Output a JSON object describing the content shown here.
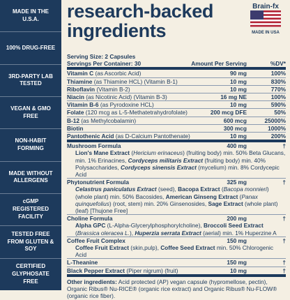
{
  "sidebar": [
    "MADE IN THE U.S.A.",
    "100% DRUG-FREE",
    "3RD-PARTY LAB TESTED",
    "VEGAN & GMO FREE",
    "NON-HABIT FORMING",
    "MADE WITHOUT ALLERGENS",
    "cGMP REGISTERED FACILITY",
    "TESTED FREE FROM GLUTEN & SOY",
    "CERTIFIED GLYPHOSATE FREE"
  ],
  "header": {
    "title": [
      "research-backed",
      "ingredients"
    ],
    "brand": "Brain-fx",
    "badge": "MADE IN USA"
  },
  "table": {
    "serving_size": "Serving Size: 2 Capsules",
    "servings_per_container": "Servings Per Container: 30",
    "amount_header": "Amount Per Serving",
    "dv_header": "%DV*",
    "rows": [
      {
        "name": "Vitamin C",
        "detail": "(as Ascorbic Acid)",
        "amount": "90 mg",
        "dv": "100%"
      },
      {
        "name": "Thiamine",
        "detail": "(as Thiamine HCL) (Vitamin B-1)",
        "amount": "10 mg",
        "dv": "830%"
      },
      {
        "name": "Riboflavin",
        "detail": "(Vitamin B-2)",
        "amount": "10 mg",
        "dv": "770%"
      },
      {
        "name": "Niacin",
        "detail": "(as Nicotinic Acid) (Vitamin B-3)",
        "amount": "16 mg NE",
        "dv": "100%"
      },
      {
        "name": "Vitamin B-6",
        "detail": "(as Pyrodoxine HCL)",
        "amount": "10 mg",
        "dv": "590%"
      },
      {
        "name": "Folate",
        "detail": "(120 mcg as L-5-Methatetrahydrofolate)",
        "amount": "200 mcg DFE",
        "dv": "50%"
      },
      {
        "name": "B-12",
        "detail": "(as Methylcobalamin)",
        "amount": "600 mcg",
        "dv": "25000%"
      },
      {
        "name": "Biotin",
        "detail": "",
        "amount": "300 mcg",
        "dv": "1000%"
      },
      {
        "name": "Pantothenic Acid",
        "detail": "(as D-Calcium Pantothenate)",
        "amount": "10 mg",
        "dv": "200%",
        "thick": true
      },
      {
        "name": "Mushroom Formula",
        "amount": "400 mg",
        "dv": "†",
        "description": [
          {
            "text": "Lion's Mane Extract",
            "bold": true
          },
          {
            "text": " ("
          },
          {
            "text": "Hericium erinaceus",
            "italic": true
          },
          {
            "text": ") (fruiting body) min. 50% Beta Glucans, min. 1% Erinacines, "
          },
          {
            "text": "Cordyceps militaris Extract",
            "bold": true,
            "italic": true
          },
          {
            "text": " (fruiting body) min. 40% Polysaccharides, "
          },
          {
            "text": "Cordyceps sinensis Extract",
            "bold": true,
            "italic": true
          },
          {
            "text": " (mycelium) min. 8% Cordycepic Acid"
          }
        ]
      },
      {
        "name": "Phytonutrient Formula",
        "amount": "325 mg",
        "dv": "†",
        "description": [
          {
            "text": "Celastrus paniculatus Extract",
            "bold": true,
            "italic": true
          },
          {
            "text": " (seed), "
          },
          {
            "text": "Bacopa Extract",
            "bold": true
          },
          {
            "text": " ("
          },
          {
            "text": "Bacopa monnieri",
            "italic": true
          },
          {
            "text": ") (whole plant) min. 50% Bacosides, "
          },
          {
            "text": "American Ginseng Extract",
            "bold": true
          },
          {
            "text": " ("
          },
          {
            "text": "Panax quinquefolius",
            "italic": true
          },
          {
            "text": ") (root, stem) min. 20% Ginsenosides, "
          },
          {
            "text": "Sage Extract",
            "bold": true
          },
          {
            "text": " (whole plant) (leaf) [Thujone Free]"
          }
        ]
      },
      {
        "name": "Choline Formula",
        "amount": "200 mg",
        "dv": "†",
        "description": [
          {
            "text": "Alpha GPC",
            "bold": true
          },
          {
            "text": " (L-Alpha-Glycerylphosphorylcholine), "
          },
          {
            "text": "Broccoli Seed Extract",
            "bold": true
          },
          {
            "text": " ("
          },
          {
            "text": "Brassica oleracea L.",
            "italic": true
          },
          {
            "text": "), "
          },
          {
            "text": "Huperzia serrata Extract",
            "bold": true,
            "italic": true
          },
          {
            "text": " (aerial) min. 1% Huperzine A"
          }
        ]
      },
      {
        "name": "Coffee Fruit Complex",
        "amount": "150 mg",
        "dv": "†",
        "description": [
          {
            "text": "Coffee Fruit Extract",
            "bold": true
          },
          {
            "text": " (skin,pulp), "
          },
          {
            "text": "Coffee Seed Extract",
            "bold": true
          },
          {
            "text": " min. 50% Chlorogenic Acid"
          }
        ]
      },
      {
        "name": "L-Theanine",
        "detail": "",
        "amount": "150 mg",
        "dv": "†"
      },
      {
        "name": "Black Pepper Extract",
        "detail": "(Piper nigrum) (fruit)",
        "amount": "10 mg",
        "dv": "†",
        "thick": true
      }
    ]
  },
  "footer": {
    "label": "Other ingredients:",
    "text": " Acid protected (AP) vegan capsule (hypromellose, pectin), Organic Ribus® Nu-RICE® (organic rice extract) and Organic Ribus® Nu-FLOW® (organic rice fiber)."
  }
}
